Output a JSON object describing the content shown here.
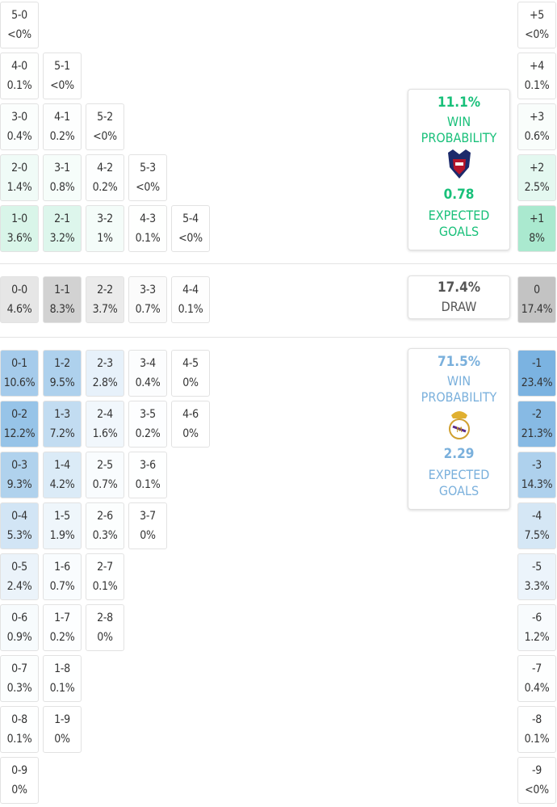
{
  "theme": {
    "home_color": "#1cc47e",
    "draw_color": "#9a9a9a",
    "away_color": "#4a97d6",
    "home_text": "#19c07a",
    "away_text": "#7ab0dc"
  },
  "home_rows": [
    [
      {
        "score": "5-0",
        "prob": "<0%"
      }
    ],
    [
      {
        "score": "4-0",
        "prob": "0.1%"
      },
      {
        "score": "5-1",
        "prob": "<0%"
      }
    ],
    [
      {
        "score": "3-0",
        "prob": "0.4%"
      },
      {
        "score": "4-1",
        "prob": "0.2%"
      },
      {
        "score": "5-2",
        "prob": "<0%"
      }
    ],
    [
      {
        "score": "2-0",
        "prob": "1.4%"
      },
      {
        "score": "3-1",
        "prob": "0.8%"
      },
      {
        "score": "4-2",
        "prob": "0.2%"
      },
      {
        "score": "5-3",
        "prob": "<0%"
      }
    ],
    [
      {
        "score": "1-0",
        "prob": "3.6%"
      },
      {
        "score": "2-1",
        "prob": "3.2%"
      },
      {
        "score": "3-2",
        "prob": "1%"
      },
      {
        "score": "4-3",
        "prob": "0.1%"
      },
      {
        "score": "5-4",
        "prob": "<0%"
      }
    ]
  ],
  "draw_row": [
    {
      "score": "0-0",
      "prob": "4.6%"
    },
    {
      "score": "1-1",
      "prob": "8.3%"
    },
    {
      "score": "2-2",
      "prob": "3.7%"
    },
    {
      "score": "3-3",
      "prob": "0.7%"
    },
    {
      "score": "4-4",
      "prob": "0.1%"
    }
  ],
  "away_rows": [
    [
      {
        "score": "0-1",
        "prob": "10.6%"
      },
      {
        "score": "1-2",
        "prob": "9.5%"
      },
      {
        "score": "2-3",
        "prob": "2.8%"
      },
      {
        "score": "3-4",
        "prob": "0.4%"
      },
      {
        "score": "4-5",
        "prob": "0%"
      }
    ],
    [
      {
        "score": "0-2",
        "prob": "12.2%"
      },
      {
        "score": "1-3",
        "prob": "7.2%"
      },
      {
        "score": "2-4",
        "prob": "1.6%"
      },
      {
        "score": "3-5",
        "prob": "0.2%"
      },
      {
        "score": "4-6",
        "prob": "0%"
      }
    ],
    [
      {
        "score": "0-3",
        "prob": "9.3%"
      },
      {
        "score": "1-4",
        "prob": "4.2%"
      },
      {
        "score": "2-5",
        "prob": "0.7%"
      },
      {
        "score": "3-6",
        "prob": "0.1%"
      }
    ],
    [
      {
        "score": "0-4",
        "prob": "5.3%"
      },
      {
        "score": "1-5",
        "prob": "1.9%"
      },
      {
        "score": "2-6",
        "prob": "0.3%"
      },
      {
        "score": "3-7",
        "prob": "0%"
      }
    ],
    [
      {
        "score": "0-5",
        "prob": "2.4%"
      },
      {
        "score": "1-6",
        "prob": "0.7%"
      },
      {
        "score": "2-7",
        "prob": "0.1%"
      }
    ],
    [
      {
        "score": "0-6",
        "prob": "0.9%"
      },
      {
        "score": "1-7",
        "prob": "0.2%"
      },
      {
        "score": "2-8",
        "prob": "0%"
      }
    ],
    [
      {
        "score": "0-7",
        "prob": "0.3%"
      },
      {
        "score": "1-8",
        "prob": "0.1%"
      }
    ],
    [
      {
        "score": "0-8",
        "prob": "0.1%"
      },
      {
        "score": "1-9",
        "prob": "0%"
      }
    ],
    [
      {
        "score": "0-9",
        "prob": "0%"
      }
    ]
  ],
  "home_margins": [
    {
      "label": "+5",
      "prob": "<0%"
    },
    {
      "label": "+4",
      "prob": "0.1%"
    },
    {
      "label": "+3",
      "prob": "0.6%"
    },
    {
      "label": "+2",
      "prob": "2.5%"
    },
    {
      "label": "+1",
      "prob": "8%"
    }
  ],
  "draw_margin": {
    "label": "0",
    "prob": "17.4%"
  },
  "away_margins": [
    {
      "label": "-1",
      "prob": "23.4%"
    },
    {
      "label": "-2",
      "prob": "21.3%"
    },
    {
      "label": "-3",
      "prob": "14.3%"
    },
    {
      "label": "-4",
      "prob": "7.5%"
    },
    {
      "label": "-5",
      "prob": "3.3%"
    },
    {
      "label": "-6",
      "prob": "1.2%"
    },
    {
      "label": "-7",
      "prob": "0.4%"
    },
    {
      "label": "-8",
      "prob": "0.1%"
    },
    {
      "label": "-9",
      "prob": "<0%"
    }
  ],
  "home_panel": {
    "win_probability": "11.1%",
    "win_label": "WIN PROBABILITY",
    "expected_goals": "0.78",
    "xg_label": "EXPECTED GOALS"
  },
  "draw_panel": {
    "probability": "17.4%",
    "label": "DRAW"
  },
  "away_panel": {
    "win_probability": "71.5%",
    "win_label": "WIN PROBABILITY",
    "expected_goals": "2.29",
    "xg_label": "EXPECTED GOALS"
  }
}
